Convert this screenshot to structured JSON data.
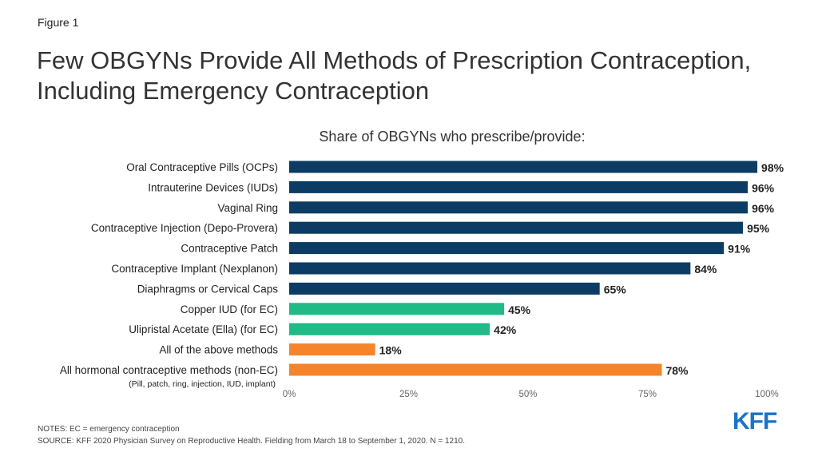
{
  "figure_label": "Figure 1",
  "title": "Few OBGYNs Provide All Methods of Prescription Contraception, Including Emergency Contraception",
  "notes": "NOTES: EC = emergency contraception",
  "source": "SOURCE: KFF 2020 Physician Survey on Reproductive Health. Fielding from March 18 to September 1, 2020. N = 1210.",
  "logo": "KFF",
  "colors": {
    "navy": "#0c3c63",
    "green": "#1fba85",
    "orange": "#f5842a"
  },
  "chart_data": {
    "type": "bar",
    "orientation": "horizontal",
    "title": "Share of OBGYNs who prescribe/provide:",
    "categories": [
      "Oral Contraceptive Pills (OCPs)",
      "Intrauterine Devices (IUDs)",
      "Vaginal Ring",
      "Contraceptive Injection (Depo-Provera)",
      "Contraceptive Patch",
      "Contraceptive Implant (Nexplanon)",
      "Diaphragms or Cervical Caps",
      "Copper IUD (for EC)",
      "Ulipristal Acetate (Ella) (for EC)",
      "All of the above methods",
      "All hormonal contraceptive methods (non-EC)"
    ],
    "category_sublabels": [
      "",
      "",
      "",
      "",
      "",
      "",
      "",
      "",
      "",
      "",
      "(Pill, patch, ring, injection, IUD, implant)"
    ],
    "values": [
      98,
      96,
      96,
      95,
      91,
      84,
      65,
      45,
      42,
      18,
      78
    ],
    "value_labels": [
      "98%",
      "96%",
      "96%",
      "95%",
      "91%",
      "84%",
      "65%",
      "45%",
      "42%",
      "18%",
      "78%"
    ],
    "bar_colors": [
      "navy",
      "navy",
      "navy",
      "navy",
      "navy",
      "navy",
      "navy",
      "green",
      "green",
      "orange",
      "orange"
    ],
    "xlim": [
      0,
      100
    ],
    "xticks": [
      0,
      25,
      50,
      75,
      100
    ],
    "xtick_labels": [
      "0%",
      "25%",
      "50%",
      "75%",
      "100%"
    ],
    "grid": false,
    "legend": "none"
  }
}
